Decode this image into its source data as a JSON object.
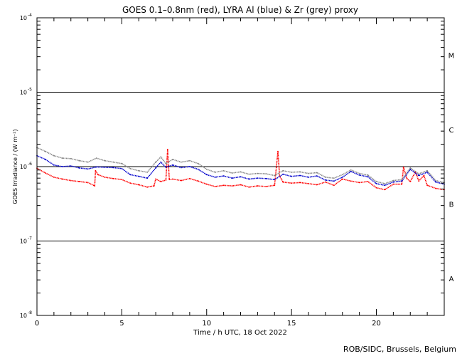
{
  "chart_data": {
    "type": "line",
    "title": "GOES 0.1–0.8nm (red), LYRA Al (blue) & Zr (grey) proxy",
    "xlabel": "Time / h UTC, 18 Oct 2022",
    "ylabel": "GOES Irradiance / (W m⁻²)",
    "credit": "ROB/SIDC, Brussels, Belgium",
    "xlim": [
      0,
      24
    ],
    "ylim": [
      1e-08,
      0.0001
    ],
    "yscale": "log",
    "x_ticks": [
      {
        "value": 0,
        "label": "0"
      },
      {
        "value": 5,
        "label": "5"
      },
      {
        "value": 10,
        "label": "10"
      },
      {
        "value": 15,
        "label": "15"
      },
      {
        "value": 20,
        "label": "20"
      }
    ],
    "y_ticks": [
      {
        "exp": -8,
        "label": "10",
        "sup": "-8"
      },
      {
        "exp": -7,
        "label": "10",
        "sup": "-7"
      },
      {
        "exp": -6,
        "label": "10",
        "sup": "-6"
      },
      {
        "exp": -5,
        "label": "10",
        "sup": "-5"
      },
      {
        "exp": -4,
        "label": "10",
        "sup": "-4"
      }
    ],
    "flare_classes": [
      {
        "label": "A",
        "exp": -7.5
      },
      {
        "label": "B",
        "exp": -6.5
      },
      {
        "label": "C",
        "exp": -5.5
      },
      {
        "label": "M",
        "exp": -4.5
      }
    ],
    "class_lines_exp": [
      -7,
      -6,
      -5
    ],
    "series": [
      {
        "color": "#ff0000",
        "x": [
          0,
          0.5,
          1,
          1.5,
          2,
          2.5,
          3,
          3.4,
          3.45,
          3.6,
          4,
          4.5,
          5,
          5.5,
          6,
          6.5,
          6.9,
          7,
          7.3,
          7.6,
          7.7,
          7.8,
          8,
          8.5,
          9,
          9.5,
          10,
          10.5,
          11,
          11.5,
          12,
          12.5,
          13,
          13.5,
          14,
          14.2,
          14.3,
          14.5,
          15,
          15.5,
          16,
          16.5,
          17,
          17.5,
          18,
          18.5,
          19,
          19.5,
          20,
          20.5,
          21,
          21.5,
          21.6,
          21.8,
          22,
          22.3,
          22.5,
          22.8,
          23,
          23.5,
          24
        ],
        "y": [
          9.5e-07,
          8.2e-07,
          7.2e-07,
          6.8e-07,
          6.5e-07,
          6.3e-07,
          6.1e-07,
          5.5e-07,
          8.8e-07,
          7.8e-07,
          7.2e-07,
          6.9e-07,
          6.7e-07,
          6e-07,
          5.7e-07,
          5.3e-07,
          5.5e-07,
          6.8e-07,
          6.3e-07,
          6.6e-07,
          1.7e-06,
          6.7e-07,
          6.8e-07,
          6.5e-07,
          6.9e-07,
          6.4e-07,
          5.8e-07,
          5.4e-07,
          5.6e-07,
          5.5e-07,
          5.7e-07,
          5.3e-07,
          5.5e-07,
          5.4e-07,
          5.6e-07,
          1.6e-06,
          7.5e-07,
          6.2e-07,
          6e-07,
          6.1e-07,
          5.9e-07,
          5.7e-07,
          6.2e-07,
          5.6e-07,
          6.8e-07,
          6.4e-07,
          6.1e-07,
          6.3e-07,
          5.2e-07,
          4.9e-07,
          5.8e-07,
          5.8e-07,
          9.8e-07,
          6.9e-07,
          6.3e-07,
          8.5e-07,
          6.4e-07,
          7.6e-07,
          5.6e-07,
          5.1e-07,
          4.9e-07
        ]
      },
      {
        "color": "#0000cc",
        "x": [
          0,
          0.5,
          1,
          1.5,
          2,
          2.5,
          3,
          3.5,
          4,
          4.5,
          5,
          5.5,
          6,
          6.5,
          7,
          7.3,
          7.6,
          8,
          8.5,
          9,
          9.5,
          10,
          10.5,
          11,
          11.5,
          12,
          12.5,
          13,
          13.5,
          14,
          14.5,
          15,
          15.5,
          16,
          16.5,
          17,
          17.5,
          18,
          18.5,
          19,
          19.5,
          20,
          20.5,
          21,
          21.5,
          22,
          22.5,
          23,
          23.5,
          24
        ],
        "y": [
          1.4e-06,
          1.25e-06,
          1.05e-06,
          1e-06,
          1.02e-06,
          9.6e-07,
          9.3e-07,
          9.9e-07,
          9.8e-07,
          9.7e-07,
          9.4e-07,
          7.8e-07,
          7.4e-07,
          7e-07,
          9.6e-07,
          1.15e-06,
          9.8e-07,
          1.05e-06,
          9.7e-07,
          1e-06,
          9.2e-07,
          7.8e-07,
          7.2e-07,
          7.5e-07,
          7e-07,
          7.3e-07,
          6.8e-07,
          7e-07,
          6.9e-07,
          6.7e-07,
          7.9e-07,
          7.4e-07,
          7.6e-07,
          7.2e-07,
          7.5e-07,
          6.6e-07,
          6.4e-07,
          7.2e-07,
          8.6e-07,
          7.7e-07,
          7.3e-07,
          5.9e-07,
          5.6e-07,
          6.2e-07,
          6.4e-07,
          9.2e-07,
          7.6e-07,
          8.4e-07,
          6.2e-07,
          5.8e-07
        ]
      },
      {
        "color": "#888888",
        "x": [
          0,
          0.5,
          1,
          1.5,
          2,
          2.5,
          3,
          3.5,
          4,
          4.5,
          5,
          5.5,
          6,
          6.5,
          7,
          7.3,
          7.6,
          8,
          8.5,
          9,
          9.5,
          10,
          10.5,
          11,
          11.5,
          12,
          12.5,
          13,
          13.5,
          14,
          14.5,
          15,
          15.5,
          16,
          16.5,
          17,
          17.5,
          18,
          18.5,
          19,
          19.5,
          20,
          20.5,
          21,
          21.5,
          22,
          22.5,
          23,
          23.5,
          24
        ],
        "y": [
          1.8e-06,
          1.6e-06,
          1.4e-06,
          1.3e-06,
          1.28e-06,
          1.2e-06,
          1.15e-06,
          1.3e-06,
          1.2e-06,
          1.15e-06,
          1.1e-06,
          9.4e-07,
          8.8e-07,
          8.4e-07,
          1.15e-06,
          1.35e-06,
          1.1e-06,
          1.25e-06,
          1.15e-06,
          1.2e-06,
          1.1e-06,
          9.2e-07,
          8.4e-07,
          8.8e-07,
          8.2e-07,
          8.5e-07,
          7.9e-07,
          8.1e-07,
          8e-07,
          7.6e-07,
          8.8e-07,
          8.4e-07,
          8.5e-07,
          8.1e-07,
          8.3e-07,
          7.2e-07,
          7e-07,
          7.8e-07,
          9e-07,
          8.1e-07,
          7.7e-07,
          6.3e-07,
          5.9e-07,
          6.5e-07,
          6.7e-07,
          9.6e-07,
          8e-07,
          8.8e-07,
          6.5e-07,
          6.1e-07
        ]
      }
    ]
  }
}
